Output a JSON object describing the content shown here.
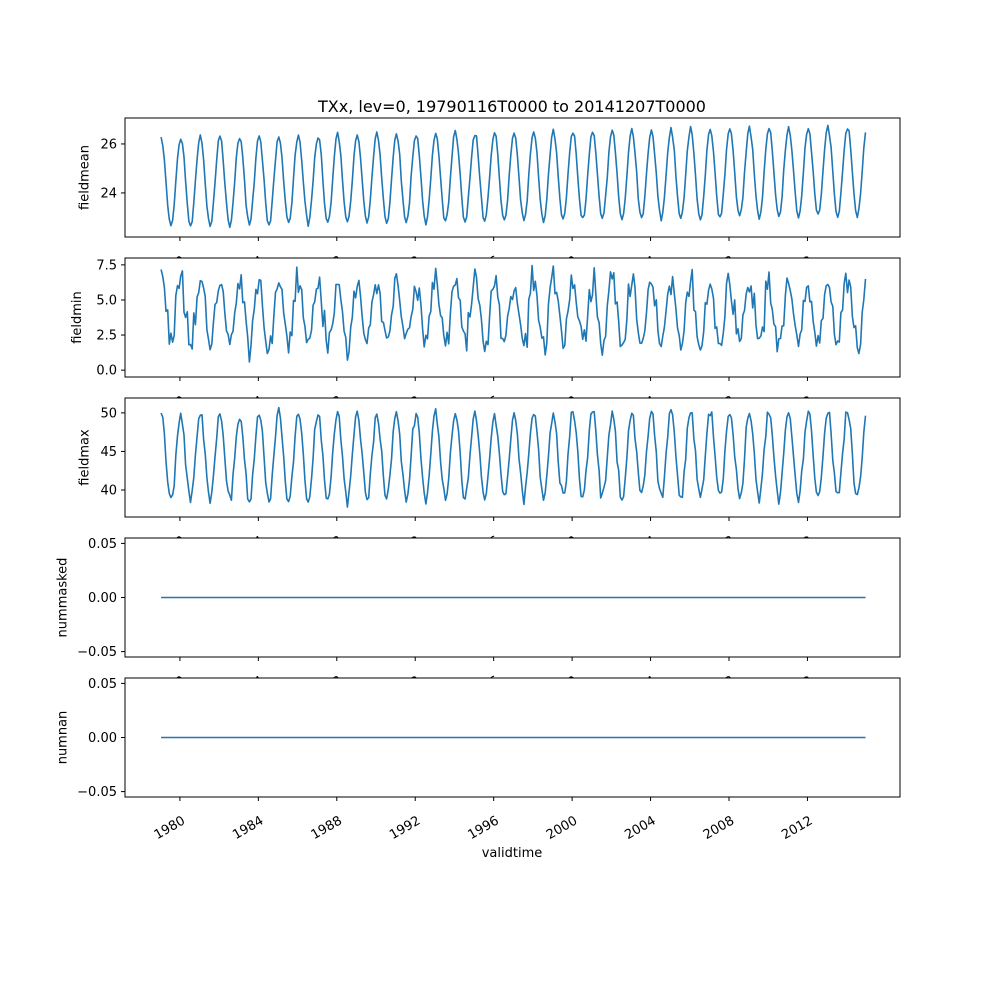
{
  "figure": {
    "background_color": "#ffffff",
    "line_color": "#1f77b4",
    "axis_color": "#000000"
  },
  "chart_data": {
    "type": "line",
    "title": "TXx, lev=0, 19790116T0000 to 20141207T0000",
    "xlabel": "validtime",
    "legend": "none",
    "grid": false,
    "seed": 137,
    "x": {
      "start": 1979.0417,
      "step": 0.0833333,
      "count": 432,
      "end": 2014.9583
    },
    "xlim": [
      1977.2,
      2016.72
    ],
    "x_ticks": [
      {
        "value": 1980,
        "label": "1980"
      },
      {
        "value": 1984,
        "label": "1984"
      },
      {
        "value": 1988,
        "label": "1988"
      },
      {
        "value": 1992,
        "label": "1992"
      },
      {
        "value": 1996,
        "label": "1996"
      },
      {
        "value": 2000,
        "label": "2000"
      },
      {
        "value": 2004,
        "label": "2004"
      },
      {
        "value": 2008,
        "label": "2008"
      },
      {
        "value": 2012,
        "label": "2012"
      }
    ],
    "x_tick_rotation_deg": 30,
    "subplots": [
      {
        "ylabel": "fieldmean",
        "ylim": [
          22.2,
          27.06
        ],
        "yticks": [
          {
            "value": 24,
            "label": "24"
          },
          {
            "value": 26,
            "label": "26"
          }
        ],
        "summary": {
          "min": 22.4,
          "max": 26.9,
          "first": 26.0,
          "last": 26.0,
          "seasonal_period_years": 1
        },
        "gen": {
          "constant": null,
          "base": 24.45,
          "trend_per_year": 0.012,
          "amplitude": 1.82,
          "noise": 0.13
        }
      },
      {
        "ylabel": "fieldmin",
        "ylim": [
          -0.49,
          7.99
        ],
        "yticks": [
          {
            "value": 0.0,
            "label": "0.0"
          },
          {
            "value": 2.5,
            "label": "2.5"
          },
          {
            "value": 5.0,
            "label": "5.0"
          },
          {
            "value": 7.5,
            "label": "7.5"
          }
        ],
        "summary": {
          "min": -0.1,
          "max": 7.6,
          "first": 6.0,
          "last": 6.3,
          "seasonal_period_years": 1
        },
        "gen": {
          "constant": null,
          "base": 4.1,
          "trend_per_year": 0.0,
          "amplitude": 2.3,
          "noise": 1.45
        }
      },
      {
        "ylabel": "fieldmax",
        "ylim": [
          36.5,
          51.93
        ],
        "yticks": [
          {
            "value": 40,
            "label": "40"
          },
          {
            "value": 45,
            "label": "45"
          },
          {
            "value": 50,
            "label": "50"
          }
        ],
        "summary": {
          "min": 37.2,
          "max": 51.4,
          "first": 51.0,
          "last": 48.5,
          "seasonal_period_years": 1
        },
        "gen": {
          "constant": null,
          "base": 44.2,
          "trend_per_year": 0.012,
          "amplitude": 5.6,
          "noise": 1.0
        }
      },
      {
        "ylabel": "nummasked",
        "ylim": [
          -0.055,
          0.055
        ],
        "yticks": [
          {
            "value": -0.05,
            "label": "−0.05"
          },
          {
            "value": 0.0,
            "label": "0.00"
          },
          {
            "value": 0.05,
            "label": "0.05"
          }
        ],
        "summary": {
          "min": 0,
          "max": 0,
          "first": 0,
          "last": 0
        },
        "gen": {
          "constant": 0,
          "base": 0,
          "trend_per_year": 0,
          "amplitude": 0,
          "noise": 0
        }
      },
      {
        "ylabel": "numnan",
        "ylim": [
          -0.055,
          0.055
        ],
        "yticks": [
          {
            "value": -0.05,
            "label": "−0.05"
          },
          {
            "value": 0.0,
            "label": "0.00"
          },
          {
            "value": 0.05,
            "label": "0.05"
          }
        ],
        "summary": {
          "min": 0,
          "max": 0,
          "first": 0,
          "last": 0
        },
        "gen": {
          "constant": 0,
          "base": 0,
          "trend_per_year": 0,
          "amplitude": 0,
          "noise": 0
        }
      }
    ]
  }
}
